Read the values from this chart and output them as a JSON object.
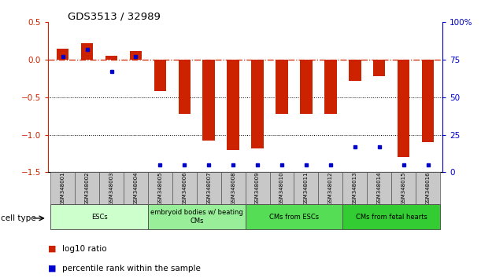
{
  "title": "GDS3513 / 32989",
  "samples": [
    "GSM348001",
    "GSM348002",
    "GSM348003",
    "GSM348004",
    "GSM348005",
    "GSM348006",
    "GSM348007",
    "GSM348008",
    "GSM348009",
    "GSM348010",
    "GSM348011",
    "GSM348012",
    "GSM348013",
    "GSM348014",
    "GSM348015",
    "GSM348016"
  ],
  "log10_ratio": [
    0.15,
    0.22,
    0.05,
    0.12,
    -0.42,
    -0.72,
    -1.08,
    -1.2,
    -1.18,
    -0.72,
    -0.72,
    -0.72,
    -0.28,
    -0.22,
    -1.3,
    -1.1
  ],
  "percentile_rank": [
    77,
    82,
    67,
    77,
    5,
    5,
    5,
    5,
    5,
    5,
    5,
    5,
    17,
    17,
    5,
    5
  ],
  "cell_type_groups": [
    {
      "label": "ESCs",
      "start": 0,
      "end": 3,
      "color": "#ccffcc"
    },
    {
      "label": "embryoid bodies w/ beating\nCMs",
      "start": 4,
      "end": 7,
      "color": "#99ee99"
    },
    {
      "label": "CMs from ESCs",
      "start": 8,
      "end": 11,
      "color": "#55dd55"
    },
    {
      "label": "CMs from fetal hearts",
      "start": 12,
      "end": 15,
      "color": "#33cc33"
    }
  ],
  "bar_color_red": "#cc2200",
  "bar_color_blue": "#0000cc",
  "ref_line_color": "#cc2200",
  "left_ylim": [
    -1.5,
    0.5
  ],
  "right_ylim": [
    0,
    100
  ],
  "left_yticks": [
    -1.5,
    -1.0,
    -0.5,
    0.0,
    0.5
  ],
  "right_yticks": [
    0,
    25,
    50,
    75,
    100
  ],
  "right_yticklabels": [
    "0",
    "25",
    "50",
    "75",
    "100%"
  ],
  "bar_width": 0.5,
  "gray_color": "#c8c8c8",
  "border_color": "#555555"
}
